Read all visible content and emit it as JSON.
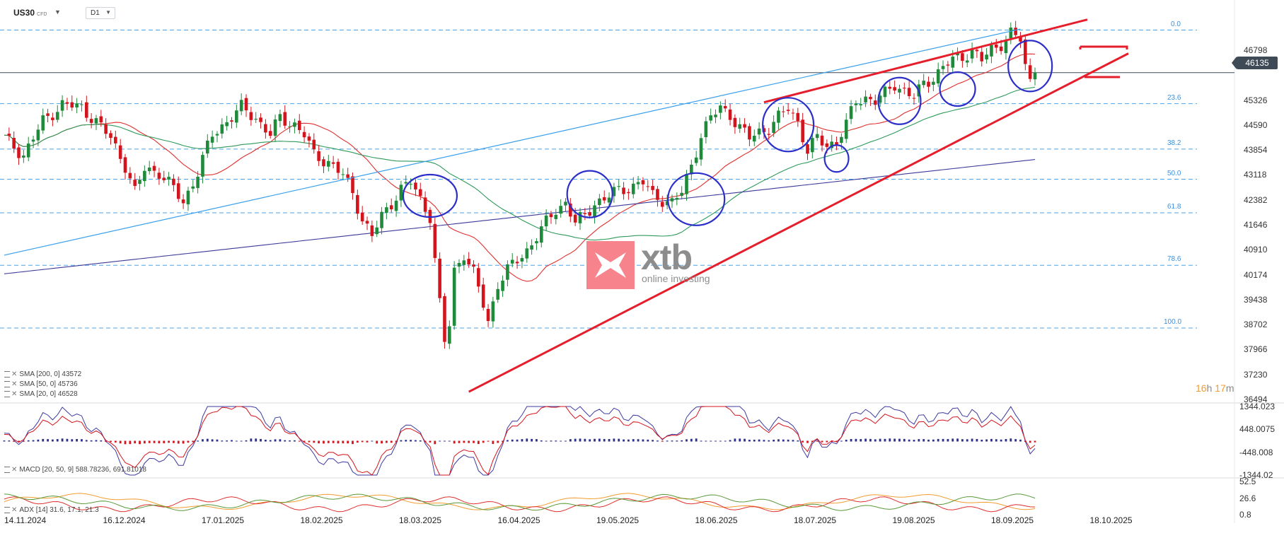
{
  "toolbar": {
    "symbol": "US30",
    "symbol_sub": "CFD",
    "timeframe": "D1",
    "caret_icon": "chevron-down-icon"
  },
  "current_price": "46135",
  "logo": {
    "word": "xtb",
    "tagline": "online investing"
  },
  "countdown": {
    "hours": "16",
    "h_unit": "h",
    "minutes": "17",
    "m_unit": "m"
  },
  "legend_main": [
    {
      "label": "SMA [200, 0] 43572"
    },
    {
      "label": "SMA [50, 0] 45736"
    },
    {
      "label": "SMA [20, 0] 46528"
    }
  ],
  "legend_macd": "MACD [20, 50, 9] 588.78236,   691.81018",
  "legend_adx": "ADX [14] 31.6, 17.1, 21.3",
  "colors": {
    "bull": "#1e8a3a",
    "bear": "#d4141c",
    "sma20": "#e0302f",
    "sma50": "#2e9a5a",
    "sma200": "#3d3a9a",
    "fib": "#4aa3e8",
    "wedge": "#e61e2b",
    "circle": "#2b2fc8",
    "blue_line": "#3aa0ec"
  },
  "chart_data": {
    "type": "candlestick",
    "instrument": "US30",
    "timeframe": "D1",
    "ylim": [
      36494,
      47860
    ],
    "price_ticks": [
      "46798",
      "45326",
      "44590",
      "43854",
      "43118",
      "42382",
      "41646",
      "40910",
      "40174",
      "39438",
      "38702",
      "37966",
      "37230",
      "36494"
    ],
    "date_ticks": [
      "14.11.2024",
      "16.12.2024",
      "17.01.2025",
      "18.02.2025",
      "18.03.2025",
      "16.04.2025",
      "19.05.2025",
      "18.06.2025",
      "18.07.2025",
      "19.08.2025",
      "18.09.2025",
      "18.10.2025"
    ],
    "fibonacci": [
      {
        "level": "0.0",
        "price": 47390
      },
      {
        "level": "23.6",
        "price": 45220
      },
      {
        "level": "38.2",
        "price": 43880
      },
      {
        "level": "50.0",
        "price": 42990
      },
      {
        "level": "61.8",
        "price": 42000
      },
      {
        "level": "78.6",
        "price": 40450
      },
      {
        "level": "100.0",
        "price": 38600
      }
    ],
    "price_path": [
      [
        0,
        44200
      ],
      [
        4,
        43700
      ],
      [
        8,
        44700
      ],
      [
        12,
        45200
      ],
      [
        16,
        45100
      ],
      [
        19,
        44700
      ],
      [
        22,
        44200
      ],
      [
        25,
        43400
      ],
      [
        27,
        42600
      ],
      [
        29,
        43300
      ],
      [
        32,
        43200
      ],
      [
        35,
        42700
      ],
      [
        37,
        42300
      ],
      [
        40,
        43200
      ],
      [
        43,
        44300
      ],
      [
        46,
        44700
      ],
      [
        49,
        45100
      ],
      [
        52,
        44800
      ],
      [
        55,
        44300
      ],
      [
        57,
        44800
      ],
      [
        60,
        44600
      ],
      [
        62,
        44300
      ],
      [
        64,
        43700
      ],
      [
        67,
        43500
      ],
      [
        70,
        43100
      ],
      [
        72,
        42600
      ],
      [
        74,
        41800
      ],
      [
        76,
        41300
      ],
      [
        78,
        41900
      ],
      [
        80,
        42300
      ],
      [
        82,
        42700
      ],
      [
        84,
        42900
      ],
      [
        86,
        42400
      ],
      [
        88,
        41900
      ],
      [
        90,
        39300
      ],
      [
        91,
        38200
      ],
      [
        92,
        38700
      ],
      [
        93,
        40300
      ],
      [
        95,
        40800
      ],
      [
        97,
        40200
      ],
      [
        99,
        39300
      ],
      [
        100,
        38800
      ],
      [
        102,
        39900
      ],
      [
        104,
        40300
      ],
      [
        106,
        40600
      ],
      [
        108,
        40900
      ],
      [
        110,
        41300
      ],
      [
        112,
        41700
      ],
      [
        114,
        42100
      ],
      [
        116,
        42300
      ],
      [
        118,
        41700
      ],
      [
        120,
        41900
      ],
      [
        122,
        42300
      ],
      [
        124,
        42400
      ],
      [
        126,
        42600
      ],
      [
        128,
        42700
      ],
      [
        130,
        42800
      ],
      [
        132,
        42900
      ],
      [
        134,
        42500
      ],
      [
        136,
        42400
      ],
      [
        138,
        42300
      ],
      [
        140,
        42600
      ],
      [
        142,
        43400
      ],
      [
        144,
        44300
      ],
      [
        146,
        44800
      ],
      [
        148,
        45100
      ],
      [
        150,
        44900
      ],
      [
        152,
        44500
      ],
      [
        154,
        44200
      ],
      [
        156,
        44400
      ],
      [
        158,
        44500
      ],
      [
        160,
        44800
      ],
      [
        162,
        45100
      ],
      [
        164,
        44700
      ],
      [
        166,
        43800
      ],
      [
        168,
        44200
      ],
      [
        170,
        44000
      ],
      [
        172,
        44100
      ],
      [
        174,
        44600
      ],
      [
        176,
        45300
      ],
      [
        178,
        45400
      ],
      [
        180,
        45300
      ],
      [
        182,
        45500
      ],
      [
        184,
        45800
      ],
      [
        186,
        45600
      ],
      [
        188,
        45400
      ],
      [
        190,
        45800
      ],
      [
        192,
        46000
      ],
      [
        194,
        46300
      ],
      [
        196,
        46500
      ],
      [
        198,
        46600
      ],
      [
        200,
        46800
      ],
      [
        202,
        46500
      ],
      [
        204,
        46800
      ],
      [
        206,
        47000
      ],
      [
        208,
        47300
      ],
      [
        210,
        47100
      ],
      [
        211,
        46300
      ],
      [
        212,
        45900
      ],
      [
        213,
        46135
      ]
    ],
    "series": [
      {
        "name": "SMA [200, 0]",
        "value": 43572
      },
      {
        "name": "SMA [50, 0]",
        "value": 45736
      },
      {
        "name": "SMA [20, 0]",
        "value": 46528
      }
    ],
    "macd": {
      "ticks": [
        "1344.023",
        "448.0075",
        "-448.008",
        "-1344.02"
      ],
      "ylim": [
        -1344.02,
        1344.023
      ],
      "values": [
        588.78236,
        691.81018
      ]
    },
    "adx": {
      "ticks": [
        "52.5",
        "26.6",
        "0.8"
      ],
      "ylim": [
        0.8,
        52.5
      ],
      "values": [
        31.6,
        17.1,
        21.3
      ]
    },
    "annotations": [
      "rising wedge",
      "7 ellipse markers",
      "horizontal arrow markers at last candle"
    ]
  }
}
